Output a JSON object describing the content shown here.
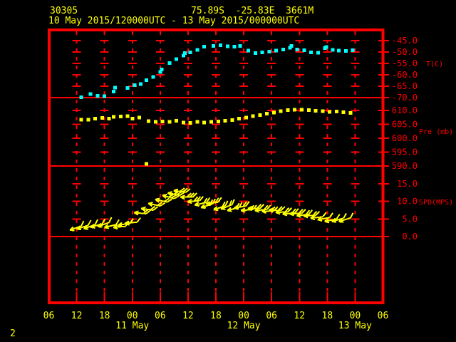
{
  "header": {
    "station_id": "30305",
    "station_location": "75.89S  -25.83E  3661M",
    "period": "10 May 2015/120000UTC - 13 May 2015/000000UTC"
  },
  "page_number": "2",
  "colors": {
    "background": "#000000",
    "grid": "#ff0000",
    "axis_text": "#ff0000",
    "time_text": "#ffff00",
    "temperature_series": "#00ffff",
    "pressure_series": "#ffff00",
    "wind_series": "#ffff00"
  },
  "x_axis": {
    "tick_labels": [
      "06",
      "12",
      "18",
      "00",
      "06",
      "12",
      "18",
      "00",
      "06",
      "12",
      "18",
      "00",
      "06"
    ],
    "date_labels": [
      {
        "label": "11 May",
        "tick_index": 3
      },
      {
        "label": "12 May",
        "tick_index": 7
      },
      {
        "label": "13 May",
        "tick_index": 11
      }
    ]
  },
  "chart_data": [
    {
      "type": "scatter",
      "title": "Temperature time series",
      "ylabel": "T(C)",
      "yticks": [
        -45,
        -50,
        -55,
        -60,
        -65,
        -70
      ],
      "ytick_labels": [
        "-45.0",
        "-50.0",
        "-55.0",
        "-60.0",
        "-65.0",
        "-70.0"
      ],
      "ylim": [
        -70,
        -41
      ],
      "x_unit": "hours after 10 May 2015 06UTC (axis 06Z 10 May to 06Z 13 May)",
      "points": [
        [
          7,
          -69.8
        ],
        [
          9,
          -68.5
        ],
        [
          10.5,
          -69.2
        ],
        [
          12,
          -69.3
        ],
        [
          14,
          -67.3
        ],
        [
          14.3,
          -65.7
        ],
        [
          17,
          -65.8
        ],
        [
          18.5,
          -64.6
        ],
        [
          19.8,
          -64.0
        ],
        [
          21,
          -62.4
        ],
        [
          22.5,
          -60.9
        ],
        [
          24,
          -58.8
        ],
        [
          24.3,
          -57.7
        ],
        [
          26,
          -54.9
        ],
        [
          27.5,
          -53.1
        ],
        [
          29,
          -51.5
        ],
        [
          29.3,
          -50.4
        ],
        [
          30.5,
          -50.1
        ],
        [
          32,
          -49.1
        ],
        [
          33.5,
          -47.6
        ],
        [
          35.5,
          -47.3
        ],
        [
          37,
          -47.1
        ],
        [
          38.5,
          -47.5
        ],
        [
          40,
          -47.7
        ],
        [
          41.2,
          -47.3
        ],
        [
          43,
          -49.3
        ],
        [
          44.5,
          -50.5
        ],
        [
          46,
          -50.2
        ],
        [
          47.5,
          -49.8
        ],
        [
          49,
          -49.4
        ],
        [
          50.5,
          -48.9
        ],
        [
          52,
          -48.2
        ],
        [
          52.3,
          -47.4
        ],
        [
          53.5,
          -48.9
        ],
        [
          55,
          -49.2
        ],
        [
          56.5,
          -50.1
        ],
        [
          58,
          -50.3
        ],
        [
          59.5,
          -48.3
        ],
        [
          59.8,
          -47.8
        ],
        [
          61.2,
          -49.0
        ],
        [
          62.5,
          -49.3
        ],
        [
          64,
          -49.5
        ],
        [
          65.5,
          -49.2
        ]
      ]
    },
    {
      "type": "scatter",
      "title": "Pressure time series",
      "ylabel": "Pre (mb)",
      "yticks": [
        610,
        605,
        600,
        595,
        590
      ],
      "ytick_labels": [
        "610.0",
        "605.0",
        "600.0",
        "595.0",
        "590.0"
      ],
      "ylim": [
        590,
        614.6
      ],
      "x_unit": "hours after 10 May 2015 06UTC (axis 06Z 10 May to 06Z 13 May)",
      "points": [
        [
          7,
          606.7
        ],
        [
          8.5,
          606.7
        ],
        [
          10,
          607.0
        ],
        [
          11.5,
          607.3
        ],
        [
          13,
          607.1
        ],
        [
          14,
          607.7
        ],
        [
          15.5,
          607.8
        ],
        [
          17,
          607.9
        ],
        [
          18,
          607.0
        ],
        [
          19.5,
          607.4
        ],
        [
          21,
          590.8
        ],
        [
          21.5,
          606.2
        ],
        [
          23,
          605.9
        ],
        [
          24.5,
          606.0
        ],
        [
          26,
          605.9
        ],
        [
          27.5,
          606.3
        ],
        [
          29,
          605.7
        ],
        [
          30.5,
          605.5
        ],
        [
          32,
          605.9
        ],
        [
          33.5,
          605.7
        ],
        [
          35,
          605.9
        ],
        [
          36.5,
          606.0
        ],
        [
          38,
          606.3
        ],
        [
          39.5,
          606.6
        ],
        [
          41,
          607.0
        ],
        [
          42.5,
          607.4
        ],
        [
          44,
          608.0
        ],
        [
          45.5,
          608.3
        ],
        [
          47,
          608.9
        ],
        [
          48.5,
          609.2
        ],
        [
          50,
          609.7
        ],
        [
          51.5,
          610.1
        ],
        [
          53,
          610.3
        ],
        [
          54.5,
          610.3
        ],
        [
          56,
          610.1
        ],
        [
          57.5,
          609.9
        ],
        [
          59,
          609.7
        ],
        [
          60.5,
          609.5
        ],
        [
          62,
          609.6
        ],
        [
          63.5,
          609.4
        ],
        [
          65,
          609.1
        ]
      ]
    },
    {
      "type": "wind_barbs",
      "title": "Wind speed and direction time series",
      "ylabel": "SPD(MPS)",
      "yticks": [
        15,
        10,
        5,
        0
      ],
      "ytick_labels": [
        "15.0",
        "10.0",
        "5.0",
        "0.0"
      ],
      "ylim": [
        0,
        20
      ],
      "x_unit": "hours after 10 May 2015 06UTC (axis 06Z 10 May to 06Z 13 May)",
      "points_format": "[hour, speed_mps, direction_from_deg]",
      "points": [
        [
          7,
          3.0,
          70
        ],
        [
          8.5,
          3.2,
          72
        ],
        [
          10,
          3.4,
          70
        ],
        [
          11.5,
          3.6,
          74
        ],
        [
          13,
          4.0,
          70
        ],
        [
          14.5,
          3.4,
          76
        ],
        [
          16.5,
          2.9,
          85
        ],
        [
          17.5,
          3.8,
          80
        ],
        [
          19,
          4.1,
          84
        ],
        [
          21,
          6.5,
          95
        ],
        [
          22.5,
          7.5,
          98
        ],
        [
          24,
          8.7,
          102
        ],
        [
          25.5,
          9.8,
          103
        ],
        [
          27,
          10.8,
          106
        ],
        [
          28.2,
          11.7,
          102
        ],
        [
          29.5,
          12.6,
          98
        ],
        [
          31,
          11.2,
          90
        ],
        [
          32.5,
          10.2,
          85
        ],
        [
          34,
          9.7,
          78
        ],
        [
          35.3,
          9.3,
          72
        ],
        [
          36.5,
          9.8,
          80
        ],
        [
          38,
          8.7,
          72
        ],
        [
          39.5,
          9.1,
          68
        ],
        [
          41,
          8.3,
          75
        ],
        [
          42.5,
          8.7,
          80
        ],
        [
          44,
          7.7,
          85
        ],
        [
          45.5,
          8.0,
          90
        ],
        [
          47,
          7.7,
          85
        ],
        [
          48.5,
          7.3,
          88
        ],
        [
          50,
          7.4,
          92
        ],
        [
          51.5,
          7.0,
          88
        ],
        [
          53,
          6.7,
          85
        ],
        [
          54.5,
          6.6,
          88
        ],
        [
          56,
          6.3,
          84
        ],
        [
          57.5,
          6.0,
          88
        ],
        [
          59,
          5.6,
          84
        ],
        [
          60.5,
          5.4,
          80
        ],
        [
          62,
          5.0,
          78
        ],
        [
          63.5,
          5.2,
          75
        ],
        [
          65,
          5.3,
          72
        ]
      ]
    }
  ]
}
